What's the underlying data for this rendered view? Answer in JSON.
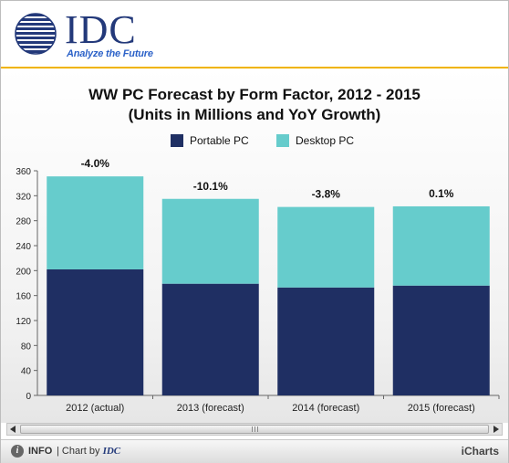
{
  "logo": {
    "brand": "IDC",
    "tagline": "Analyze the Future",
    "icon": "idc-globe-icon"
  },
  "chart_data": {
    "type": "bar",
    "stacked": true,
    "title_line1": "WW PC Forecast by Form Factor, 2012 - 2015",
    "title_line2": "(Units in Millions and YoY Growth)",
    "categories": [
      "2012 (actual)",
      "2013 (forecast)",
      "2014 (forecast)",
      "2015 (forecast)"
    ],
    "series": [
      {
        "name": "Portable PC",
        "color": "#1f2f63",
        "values": [
          202,
          179,
          173,
          176
        ]
      },
      {
        "name": "Desktop PC",
        "color": "#66cccc",
        "values": [
          149,
          136,
          129,
          127
        ]
      }
    ],
    "annotations": [
      "-4.0%",
      "-10.1%",
      "-3.8%",
      "0.1%"
    ],
    "yticks": [
      0,
      40,
      80,
      120,
      160,
      200,
      240,
      280,
      320,
      360
    ],
    "ylim": [
      0,
      360
    ],
    "grid": false,
    "legend_position": "top"
  },
  "footer": {
    "info_label": "INFO",
    "chart_by_prefix": "| Chart by",
    "chart_by_brand": "IDC",
    "brand_label": "iCharts"
  }
}
